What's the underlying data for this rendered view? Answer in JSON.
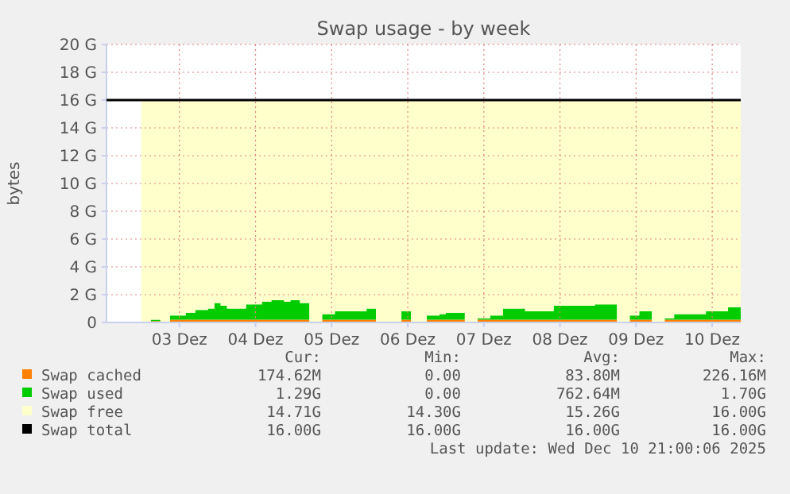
{
  "chart_data": {
    "type": "area",
    "title": "Swap usage - by week",
    "ylabel": "bytes",
    "stacked": true,
    "grid": true,
    "legend": "bottom",
    "x": [
      "2025-12-03T00:00",
      "2025-12-03T03:00",
      "2025-12-03T06:00",
      "2025-12-03T09:00",
      "2025-12-03T14:00",
      "2025-12-03T17:00",
      "2025-12-03T21:00",
      "2025-12-03T23:00",
      "2025-12-04T01:00",
      "2025-12-04T03:00",
      "2025-12-04T09:00",
      "2025-12-04T14:00",
      "2025-12-04T17:00",
      "2025-12-04T21:00",
      "2025-12-04T23:00",
      "2025-12-05T02:00",
      "2025-12-05T05:00",
      "2025-12-05T09:00",
      "2025-12-05T13:00",
      "2025-12-05T23:00",
      "2025-12-06T02:00",
      "2025-12-06T10:00",
      "2025-12-06T13:00",
      "2025-12-06T18:00",
      "2025-12-06T22:00",
      "2025-12-07T00:00",
      "2025-12-07T06:00",
      "2025-12-07T10:00",
      "2025-12-07T14:00",
      "2025-12-07T18:00",
      "2025-12-08T01:00",
      "2025-12-08T10:00",
      "2025-12-08T16:00",
      "2025-12-08T23:00",
      "2025-12-09T06:00",
      "2025-12-09T10:00",
      "2025-12-09T13:00",
      "2025-12-09T17:00",
      "2025-12-09T21:00",
      "2025-12-10T00:00",
      "2025-12-10T10:00",
      "2025-12-10T17:00",
      "2025-12-10T21:00"
    ],
    "xlim": [
      "2025-12-02T13:00",
      "2025-12-10T21:00"
    ],
    "xticks": [
      {
        "value": "2025-12-03T12:00",
        "label": "03 Dez"
      },
      {
        "value": "2025-12-04T12:00",
        "label": "04 Dez"
      },
      {
        "value": "2025-12-05T12:00",
        "label": "05 Dez"
      },
      {
        "value": "2025-12-06T12:00",
        "label": "06 Dez"
      },
      {
        "value": "2025-12-07T12:00",
        "label": "07 Dez"
      },
      {
        "value": "2025-12-08T12:00",
        "label": "08 Dez"
      },
      {
        "value": "2025-12-09T12:00",
        "label": "09 Dez"
      },
      {
        "value": "2025-12-10T12:00",
        "label": "10 Dez"
      }
    ],
    "ylim": [
      0,
      20
    ],
    "yticks": [
      0,
      {
        "value": 2,
        "label": "2 G"
      },
      {
        "value": 4,
        "label": "4 G"
      },
      {
        "value": 6,
        "label": "6 G"
      },
      {
        "value": 8,
        "label": "8 G"
      },
      {
        "value": 10,
        "label": "10 G"
      },
      {
        "value": 12,
        "label": "12 G"
      },
      {
        "value": 14,
        "label": "14 G"
      },
      {
        "value": 16,
        "label": "16 G"
      },
      {
        "value": 18,
        "label": "18 G"
      },
      {
        "value": 20,
        "label": "20 G"
      }
    ],
    "series": [
      {
        "name": "Swap cached",
        "color": "#ff7f00",
        "values": [
          0,
          0.1,
          0,
          0.2,
          0.2,
          0.2,
          0.2,
          0.2,
          0.2,
          0.2,
          0.2,
          0.2,
          0.2,
          0.2,
          0.2,
          0.2,
          0,
          0.2,
          0.2,
          0.2,
          0,
          0.2,
          0,
          0.2,
          0.2,
          0.2,
          0,
          0.2,
          0.2,
          0.2,
          0.2,
          0.2,
          0.2,
          0.2,
          0,
          0.2,
          0.2,
          0,
          0.2,
          0.2,
          0.2,
          0.2,
          0.2
        ]
      },
      {
        "name": "Swap used",
        "color": "#00cc00",
        "values": [
          0,
          0.1,
          0,
          0.3,
          0.5,
          0.7,
          0.8,
          1.2,
          1.0,
          0.8,
          1.1,
          1.3,
          1.4,
          1.3,
          1.4,
          1.2,
          0,
          0.4,
          0.6,
          0.8,
          0,
          0.6,
          0,
          0.3,
          0.4,
          0.5,
          0,
          0.1,
          0.3,
          0.8,
          0.6,
          1.0,
          1.0,
          1.1,
          0,
          0.3,
          0.6,
          0,
          0.1,
          0.4,
          0.6,
          0.9,
          0.9
        ]
      },
      {
        "name": "Swap free",
        "color": "#ffffcc",
        "values": [
          16,
          15.8,
          16,
          15.5,
          15.3,
          15.1,
          15,
          14.6,
          14.8,
          15,
          14.7,
          14.5,
          14.4,
          14.5,
          14.4,
          14.6,
          16,
          15.4,
          15.2,
          15,
          16,
          15.2,
          16,
          15.5,
          15.4,
          15.3,
          16,
          15.7,
          15.5,
          15,
          15.2,
          14.8,
          14.8,
          14.7,
          16,
          15.5,
          15.2,
          16,
          15.7,
          15.4,
          15.2,
          14.9,
          14.9
        ]
      }
    ],
    "ref_lines": [
      {
        "axis": "y",
        "value": 16,
        "label": "Swap total",
        "color": "#000000"
      }
    ],
    "annotations": [
      "Cur:",
      "Min:",
      "Avg:",
      "Max:",
      "174.62M",
      "0.00",
      "83.80M",
      "226.16M",
      "1.29G",
      "0.00",
      "762.64M",
      "1.70G",
      "14.71G",
      "14.30G",
      "15.26G",
      "16.00G",
      "16.00G",
      "16.00G",
      "16.00G",
      "16.00G",
      "Last update: Wed Dec 10 21:00:06 2025"
    ]
  }
}
